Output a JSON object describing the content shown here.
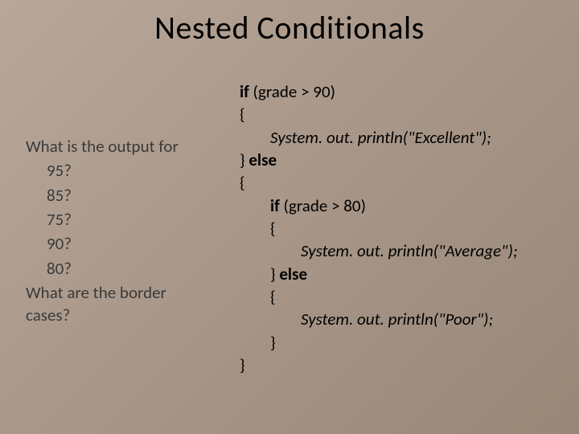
{
  "slide": {
    "title": "Nested Conditionals",
    "background_gradient": [
      "#b8a89a",
      "#a89688",
      "#988878"
    ],
    "title_fontsize": 40,
    "body_fontsize": 21,
    "text_color": "#000000",
    "left_text_color": "#3a3a3a"
  },
  "left": {
    "prompt": "What is the output for",
    "values": [
      "95?",
      "85?",
      "75?",
      "90?",
      "80?"
    ],
    "question2a": "What are the border",
    "question2b": "cases?"
  },
  "code": {
    "L1_if": "if",
    "L1_rest": " (grade > 90)",
    "L2": "{",
    "L3_call": "        System. out. println(\"Excellent\");",
    "L4_close": "} ",
    "L4_else": "else",
    "L5": "{",
    "L6_if": "if",
    "L6_rest": " (grade > 80)",
    "L6_indent": "        ",
    "L7_indent": "        ",
    "L7": "{",
    "L8_call": "                System. out. println(\"Average\");",
    "L9_indent": "        ",
    "L9_close": "} ",
    "L9_else": "else",
    "L10_indent": "        ",
    "L10": "{",
    "L11_call": "                System. out. println(\"Poor\");",
    "L12_indent": "        ",
    "L12": "}",
    "L13": "}"
  }
}
